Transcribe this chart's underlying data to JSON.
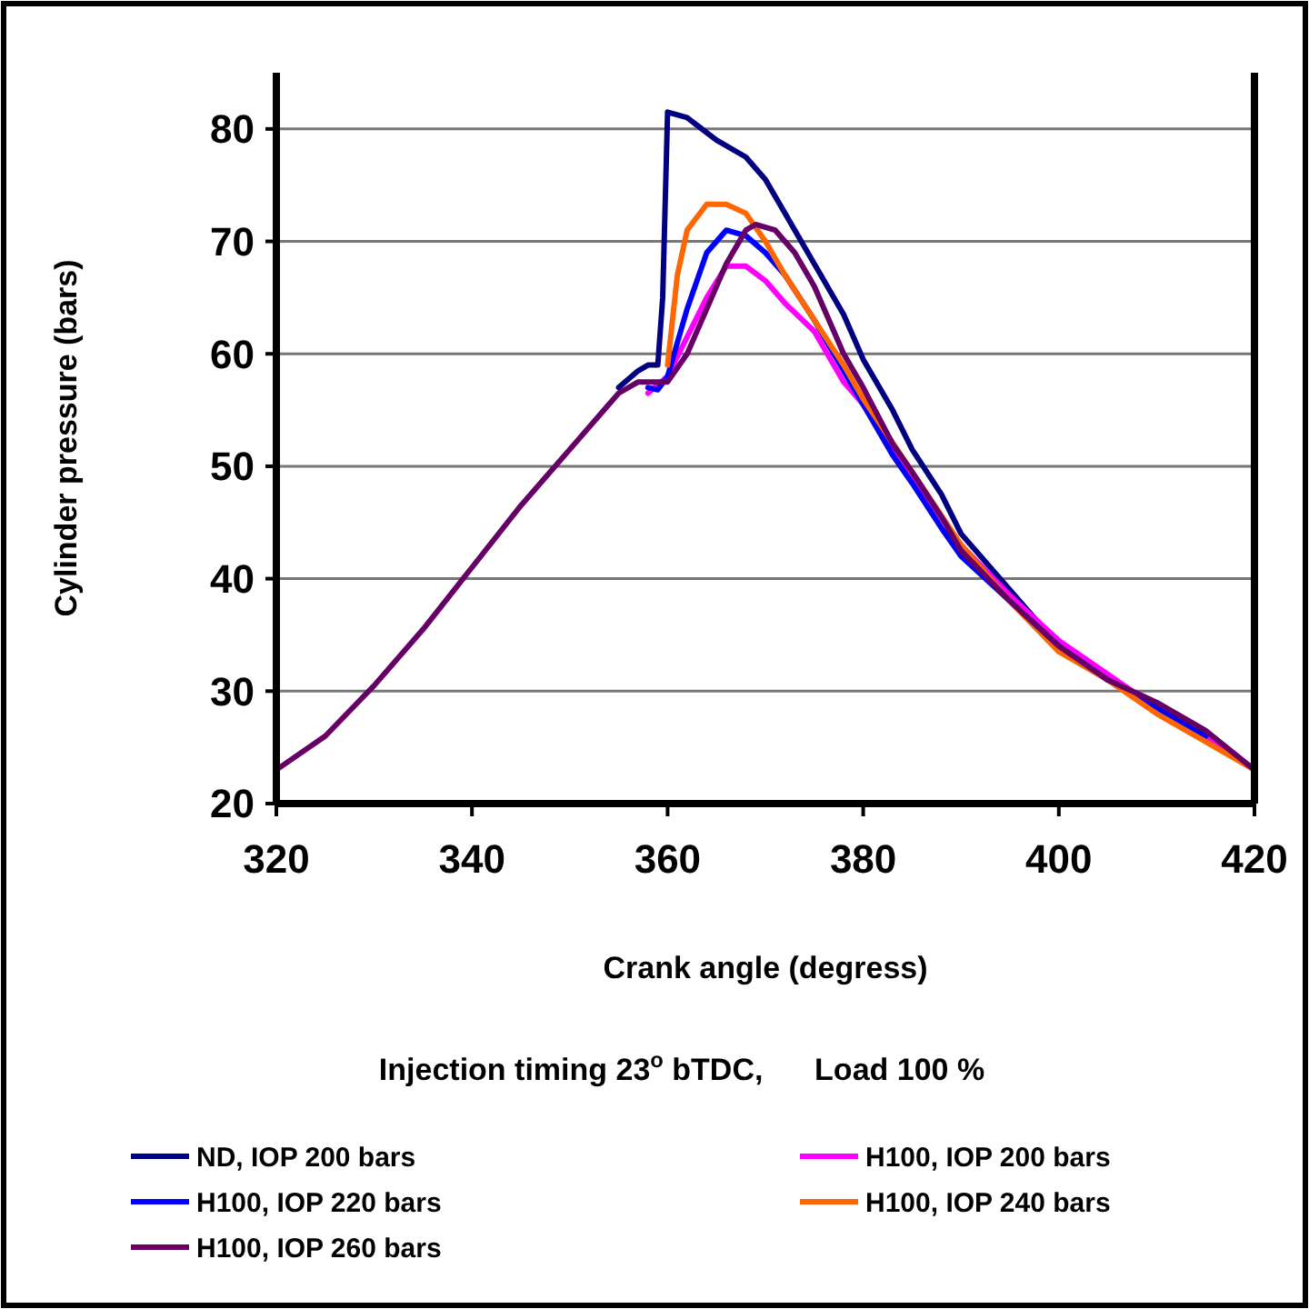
{
  "chart_data": {
    "type": "line",
    "xlabel": "Crank angle (degress)",
    "ylabel": "Cylinder pressure (bars)",
    "annotations": [
      "Injection timing 23$^{o}$ bTDC,      Load 100 %"
    ],
    "xlim": [
      320,
      420
    ],
    "xticks": [
      320,
      340,
      360,
      380,
      400,
      420
    ],
    "ylim": [
      20,
      85
    ],
    "yticks": [
      20,
      30,
      40,
      50,
      60,
      70,
      80
    ],
    "grid": "y",
    "legend": "bottom",
    "line_style": "solid",
    "series": [
      {
        "name": "ND, IOP 200 bars",
        "color": "#000080",
        "x": [
          355,
          357,
          358,
          359,
          359.5,
          360,
          362,
          365,
          368,
          370,
          372,
          375,
          378,
          380,
          383,
          385,
          388,
          390,
          395,
          400,
          405
        ],
        "values": [
          57,
          58.5,
          59,
          59,
          65,
          81.5,
          81,
          79,
          77.5,
          75.5,
          72.5,
          68,
          63.5,
          59.5,
          55,
          51.5,
          47.5,
          44,
          39,
          34,
          31
        ]
      },
      {
        "name": "H100, IOP 200 bars",
        "color": "#ff00ff",
        "x": [
          358,
          360,
          362,
          364,
          366,
          368,
          370,
          372,
          375,
          378,
          380,
          385,
          390,
          395,
          400,
          405,
          410,
          415,
          420
        ],
        "values": [
          56.5,
          58,
          61.5,
          65,
          67.8,
          67.8,
          66.5,
          64.5,
          62,
          57.5,
          55.5,
          49,
          43,
          38.5,
          34.5,
          31.5,
          28.5,
          26,
          23
        ]
      },
      {
        "name": "H100, IOP 220 bars",
        "color": "#0000ff",
        "x": [
          358,
          359,
          360,
          362,
          364,
          366,
          368,
          370,
          372,
          375,
          378,
          380,
          383,
          385,
          388,
          390,
          395,
          400,
          405,
          410,
          415
        ],
        "values": [
          57,
          56.8,
          58,
          64,
          69,
          71,
          70.5,
          69,
          67,
          63,
          58.5,
          55.5,
          51,
          48.5,
          44.5,
          42,
          38,
          34,
          31,
          28.5,
          26
        ]
      },
      {
        "name": "H100, IOP 240 bars",
        "color": "#ff6600",
        "x": [
          360,
          361,
          362,
          364,
          366,
          368,
          370,
          372,
          375,
          378,
          380,
          385,
          390,
          395,
          400,
          405,
          410,
          415,
          420
        ],
        "values": [
          59,
          67,
          71,
          73.3,
          73.3,
          72.5,
          70,
          67,
          63,
          59,
          56,
          49.5,
          43,
          38,
          33.5,
          31,
          28,
          25.5,
          23
        ]
      },
      {
        "name": "H100, IOP 260 bars",
        "color": "#660066",
        "x": [
          320,
          325,
          330,
          335,
          340,
          345,
          350,
          353,
          355,
          357,
          358,
          360,
          362,
          364,
          366,
          368,
          369,
          371,
          373,
          375,
          378,
          380,
          383,
          385,
          388,
          390,
          395,
          400,
          405,
          410,
          415,
          420
        ],
        "values": [
          23,
          26,
          30.5,
          35.5,
          41,
          46.5,
          51.5,
          54.5,
          56.5,
          57.5,
          57.5,
          57.5,
          60,
          64,
          68,
          71,
          71.5,
          71,
          69,
          66,
          60,
          57,
          52,
          49.5,
          45.5,
          42.5,
          38,
          34,
          31,
          29,
          26.5,
          23
        ]
      }
    ]
  }
}
